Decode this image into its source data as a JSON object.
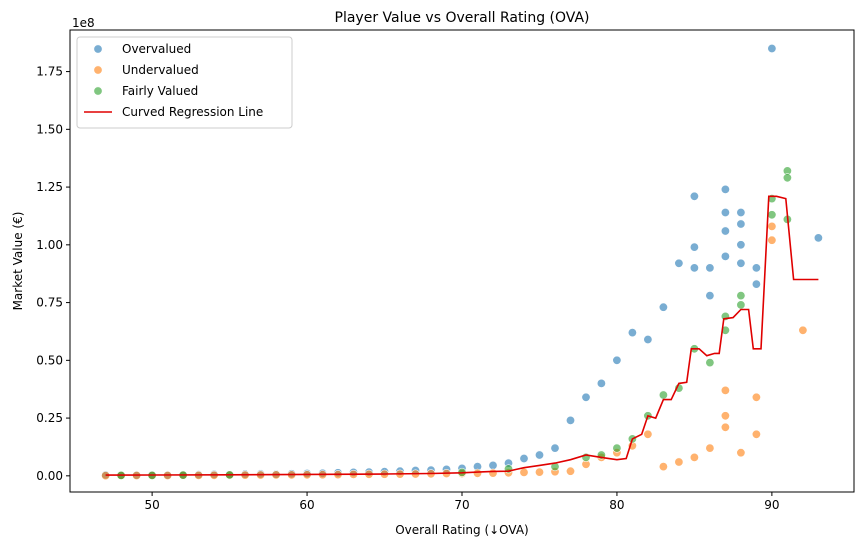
{
  "chart_data": {
    "type": "scatter",
    "title": "Player Value vs Overall Rating (OVA)",
    "xlabel": "Overall Rating (↓OVA)",
    "ylabel": "Market Value (€)",
    "y_multiplier_label": "1e8",
    "xlim": [
      44.7,
      95.3
    ],
    "ylim": [
      -7000000,
      193000000
    ],
    "x_ticks": [
      50,
      60,
      70,
      80,
      90
    ],
    "x_tick_labels": [
      "50",
      "60",
      "70",
      "80",
      "90"
    ],
    "y_ticks": [
      0,
      25000000,
      50000000,
      75000000,
      100000000,
      125000000,
      150000000,
      175000000
    ],
    "y_tick_labels": [
      "0.00",
      "0.25",
      "0.50",
      "0.75",
      "1.00",
      "1.25",
      "1.50",
      "1.75"
    ],
    "grid": false,
    "legend_position": "top-left",
    "series": [
      {
        "name": "Overvalued",
        "kind": "scatter",
        "color": "#1f77b4",
        "points": [
          [
            47,
            400000
          ],
          [
            48,
            300000
          ],
          [
            49,
            300000
          ],
          [
            50,
            400000
          ],
          [
            51,
            300000
          ],
          [
            52,
            400000
          ],
          [
            53,
            500000
          ],
          [
            54,
            600000
          ],
          [
            55,
            500000
          ],
          [
            56,
            700000
          ],
          [
            57,
            800000
          ],
          [
            58,
            700000
          ],
          [
            59,
            900000
          ],
          [
            60,
            1000000
          ],
          [
            61,
            1100000
          ],
          [
            62,
            1300000
          ],
          [
            63,
            1500000
          ],
          [
            64,
            1600000
          ],
          [
            65,
            1800000
          ],
          [
            66,
            2000000
          ],
          [
            67,
            2300000
          ],
          [
            68,
            2500000
          ],
          [
            69,
            2800000
          ],
          [
            70,
            3200000
          ],
          [
            71,
            4000000
          ],
          [
            72,
            4500000
          ],
          [
            73,
            5500000
          ],
          [
            74,
            7500000
          ],
          [
            75,
            9000000
          ],
          [
            76,
            12000000
          ],
          [
            77,
            24000000
          ],
          [
            78,
            34000000
          ],
          [
            79,
            40000000
          ],
          [
            80,
            50000000
          ],
          [
            81,
            62000000
          ],
          [
            82,
            59000000
          ],
          [
            83,
            73000000
          ],
          [
            84,
            92000000
          ],
          [
            85,
            121000000
          ],
          [
            85,
            99000000
          ],
          [
            85,
            90000000
          ],
          [
            86,
            90000000
          ],
          [
            86,
            78000000
          ],
          [
            87,
            124000000
          ],
          [
            87,
            114000000
          ],
          [
            87,
            106000000
          ],
          [
            87,
            95000000
          ],
          [
            88,
            114000000
          ],
          [
            88,
            109000000
          ],
          [
            88,
            100000000
          ],
          [
            88,
            92000000
          ],
          [
            89,
            90000000
          ],
          [
            89,
            83000000
          ],
          [
            90,
            185000000
          ],
          [
            93,
            103000000
          ]
        ]
      },
      {
        "name": "Undervalued",
        "kind": "scatter",
        "color": "#ff7f0e",
        "points": [
          [
            47,
            100000
          ],
          [
            48,
            100000
          ],
          [
            49,
            150000
          ],
          [
            50,
            150000
          ],
          [
            51,
            150000
          ],
          [
            52,
            200000
          ],
          [
            53,
            200000
          ],
          [
            54,
            250000
          ],
          [
            55,
            250000
          ],
          [
            56,
            300000
          ],
          [
            57,
            350000
          ],
          [
            58,
            400000
          ],
          [
            59,
            400000
          ],
          [
            60,
            450000
          ],
          [
            61,
            500000
          ],
          [
            62,
            550000
          ],
          [
            63,
            600000
          ],
          [
            64,
            650000
          ],
          [
            65,
            700000
          ],
          [
            66,
            750000
          ],
          [
            67,
            800000
          ],
          [
            68,
            900000
          ],
          [
            69,
            1000000
          ],
          [
            70,
            1000000
          ],
          [
            71,
            1100000
          ],
          [
            72,
            1200000
          ],
          [
            73,
            1300000
          ],
          [
            74,
            1500000
          ],
          [
            75,
            1600000
          ],
          [
            76,
            1800000
          ],
          [
            77,
            2000000
          ],
          [
            78,
            5000000
          ],
          [
            79,
            8000000
          ],
          [
            80,
            10000000
          ],
          [
            81,
            13000000
          ],
          [
            82,
            18000000
          ],
          [
            83,
            4000000
          ],
          [
            84,
            6000000
          ],
          [
            85,
            8000000
          ],
          [
            86,
            12000000
          ],
          [
            87,
            21000000
          ],
          [
            87,
            26000000
          ],
          [
            87,
            37000000
          ],
          [
            88,
            10000000
          ],
          [
            89,
            34000000
          ],
          [
            89,
            18000000
          ],
          [
            90,
            102000000
          ],
          [
            90,
            108000000
          ],
          [
            92,
            63000000
          ]
        ]
      },
      {
        "name": "Fairly Valued",
        "kind": "scatter",
        "color": "#2ca02c",
        "points": [
          [
            48,
            200000
          ],
          [
            50,
            200000
          ],
          [
            52,
            300000
          ],
          [
            55,
            400000
          ],
          [
            70,
            1500000
          ],
          [
            73,
            3000000
          ],
          [
            76,
            4000000
          ],
          [
            78,
            8000000
          ],
          [
            79,
            9000000
          ],
          [
            80,
            12000000
          ],
          [
            81,
            16000000
          ],
          [
            82,
            26000000
          ],
          [
            83,
            35000000
          ],
          [
            84,
            38000000
          ],
          [
            85,
            55000000
          ],
          [
            86,
            49000000
          ],
          [
            87,
            63000000
          ],
          [
            87,
            69000000
          ],
          [
            88,
            78000000
          ],
          [
            88,
            74000000
          ],
          [
            90,
            113000000
          ],
          [
            90,
            120000000
          ],
          [
            91,
            132000000
          ],
          [
            91,
            129000000
          ],
          [
            91,
            111000000
          ]
        ]
      },
      {
        "name": "Curved Regression Line",
        "kind": "line",
        "color": "#e00000",
        "points": [
          [
            47,
            300000
          ],
          [
            50,
            350000
          ],
          [
            55,
            450000
          ],
          [
            60,
            600000
          ],
          [
            65,
            800000
          ],
          [
            68,
            1000000
          ],
          [
            70,
            1300000
          ],
          [
            71,
            1600000
          ],
          [
            72,
            1900000
          ],
          [
            73,
            2000000
          ],
          [
            73.5,
            2800000
          ],
          [
            74,
            3500000
          ],
          [
            75,
            4500000
          ],
          [
            76,
            5500000
          ],
          [
            77,
            7000000
          ],
          [
            78,
            9000000
          ],
          [
            79,
            8000000
          ],
          [
            80,
            7000000
          ],
          [
            80.6,
            7500000
          ],
          [
            81,
            16000000
          ],
          [
            81.6,
            18000000
          ],
          [
            82,
            26000000
          ],
          [
            82.5,
            25000000
          ],
          [
            83,
            33000000
          ],
          [
            83.5,
            33000000
          ],
          [
            84,
            40000000
          ],
          [
            84.5,
            40500000
          ],
          [
            84.8,
            55000000
          ],
          [
            85.3,
            55000000
          ],
          [
            85.8,
            52000000
          ],
          [
            86.3,
            53000000
          ],
          [
            86.6,
            53000000
          ],
          [
            86.9,
            68000000
          ],
          [
            87.5,
            68500000
          ],
          [
            88,
            72000000
          ],
          [
            88.5,
            72000000
          ],
          [
            88.8,
            55000000
          ],
          [
            89.3,
            55000000
          ],
          [
            89.8,
            121000000
          ],
          [
            90.3,
            121000000
          ],
          [
            90.9,
            120000000
          ],
          [
            91.4,
            85000000
          ],
          [
            93,
            85000000
          ]
        ]
      }
    ]
  }
}
